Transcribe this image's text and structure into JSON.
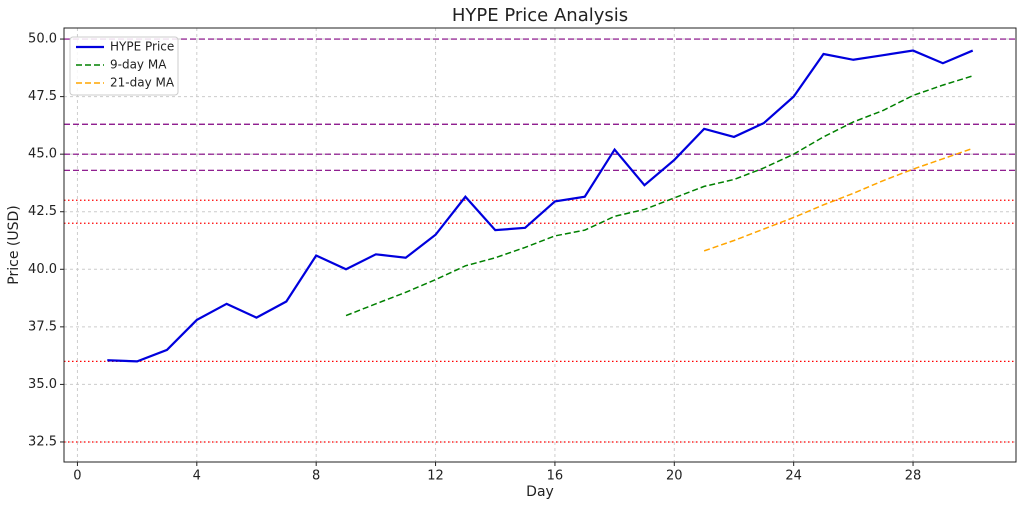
{
  "chart_data": {
    "type": "line",
    "title": "HYPE Price Analysis",
    "x_label": "Day",
    "y_label": "Price (USD)",
    "x": [
      1,
      2,
      3,
      4,
      5,
      6,
      7,
      8,
      9,
      10,
      11,
      12,
      13,
      14,
      15,
      16,
      17,
      18,
      19,
      20,
      21,
      22,
      23,
      24,
      25,
      26,
      27,
      28,
      29,
      30
    ],
    "series": [
      {
        "name": "HYPE Price",
        "color": "#0000dd",
        "style": "solid",
        "values": [
          36.05,
          36.0,
          36.5,
          37.8,
          38.5,
          37.9,
          38.6,
          40.6,
          40.0,
          40.65,
          40.5,
          41.5,
          43.15,
          41.7,
          41.8,
          42.95,
          43.15,
          45.2,
          43.65,
          44.75,
          46.1,
          45.75,
          46.35,
          47.5,
          49.35,
          49.1,
          49.3,
          49.5,
          48.95,
          49.5
        ]
      },
      {
        "name": "9-day MA",
        "color": "#008000",
        "style": "dashed",
        "values": [
          null,
          null,
          null,
          null,
          null,
          null,
          null,
          null,
          37.99,
          38.5,
          39.0,
          39.55,
          40.15,
          40.5,
          40.95,
          41.45,
          41.7,
          42.3,
          42.6,
          43.1,
          43.6,
          43.9,
          44.4,
          45.0,
          45.75,
          46.4,
          46.9,
          47.55,
          48.0,
          48.4
        ]
      },
      {
        "name": "21-day MA",
        "color": "#ffa500",
        "style": "dashed",
        "values": [
          null,
          null,
          null,
          null,
          null,
          null,
          null,
          null,
          null,
          null,
          null,
          null,
          null,
          null,
          null,
          null,
          null,
          null,
          null,
          null,
          40.8,
          41.25,
          41.75,
          42.25,
          42.8,
          43.3,
          43.85,
          44.35,
          44.8,
          45.25
        ]
      }
    ],
    "hlines": [
      {
        "value": 50,
        "color": "#800080",
        "style": "dashed"
      },
      {
        "value": 46.3,
        "color": "#800080",
        "style": "dashed"
      },
      {
        "value": 45,
        "color": "#800080",
        "style": "dashed"
      },
      {
        "value": 44.3,
        "color": "#800080",
        "style": "dashed"
      },
      {
        "value": 43,
        "color": "#ff0000",
        "style": "dotted"
      },
      {
        "value": 42,
        "color": "#ff0000",
        "style": "dotted"
      },
      {
        "value": 36,
        "color": "#ff0000",
        "style": "dotted"
      },
      {
        "value": 32.5,
        "color": "#ff0000",
        "style": "dotted"
      }
    ],
    "xlim": [
      -0.45,
      31.45
    ],
    "xticks": [
      0,
      4,
      8,
      12,
      16,
      20,
      24,
      28
    ],
    "ylim": [
      31.63,
      50.48
    ],
    "yticks": [
      32.5,
      {
        "value": 35,
        "label": "35.0"
      },
      37.5,
      {
        "value": 40,
        "label": "40.0"
      },
      42.5,
      {
        "value": 45,
        "label": "45.0"
      },
      47.5,
      {
        "value": 50,
        "label": "50.0"
      }
    ],
    "grid": true,
    "legend": "upper-left"
  }
}
